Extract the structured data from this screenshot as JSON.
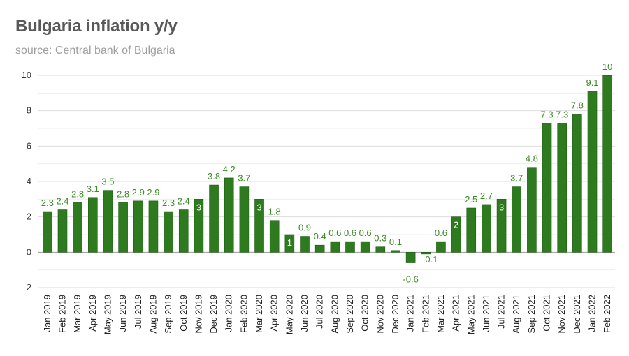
{
  "title": "Bulgaria inflation y/y",
  "subtitle": "source: Central bank of Bulgaria",
  "colors": {
    "bar": "#2d7a1f",
    "bar_stroke": "#1f5c14",
    "label": "#3d8a29",
    "grid": "#dddddd",
    "axis": "#999999"
  },
  "chart_data": {
    "type": "bar",
    "ylim": [
      -2,
      10
    ],
    "yticks": [
      -2,
      0,
      2,
      4,
      6,
      8,
      10
    ],
    "grid": true,
    "categories": [
      "Jan 2019",
      "Feb 2019",
      "Mar 2019",
      "Apr 2019",
      "May 2019",
      "Jun 2019",
      "Jul 2019",
      "Aug 2019",
      "Sep 2019",
      "Oct 2019",
      "Nov 2019",
      "Dec 2019",
      "Jan 2020",
      "Feb 2020",
      "Mar 2020",
      "Apr 2020",
      "May 2020",
      "Jun 2020",
      "Jul 2020",
      "Aug 2020",
      "Sep 2020",
      "Oct 2020",
      "Nov 2020",
      "Dec 2020",
      "Jan 2021",
      "Feb 2021",
      "Mar 2021",
      "Apr 2021",
      "May 2021",
      "Jun 2021",
      "Jul 2021",
      "Aug 2021",
      "Sep 2021",
      "Oct 2021",
      "Nov 2021",
      "Dec 2021",
      "Jan 2022",
      "Feb 2022"
    ],
    "values": [
      2.3,
      2.4,
      2.8,
      3.1,
      3.5,
      2.8,
      2.9,
      2.9,
      2.3,
      2.4,
      3,
      3.8,
      4.2,
      3.7,
      3,
      1.8,
      1,
      0.9,
      0.4,
      0.6,
      0.6,
      0.6,
      0.3,
      0.1,
      -0.6,
      -0.1,
      0.6,
      2,
      2.5,
      2.7,
      3,
      3.7,
      4.8,
      7.3,
      7.3,
      7.8,
      9.1,
      10
    ]
  }
}
